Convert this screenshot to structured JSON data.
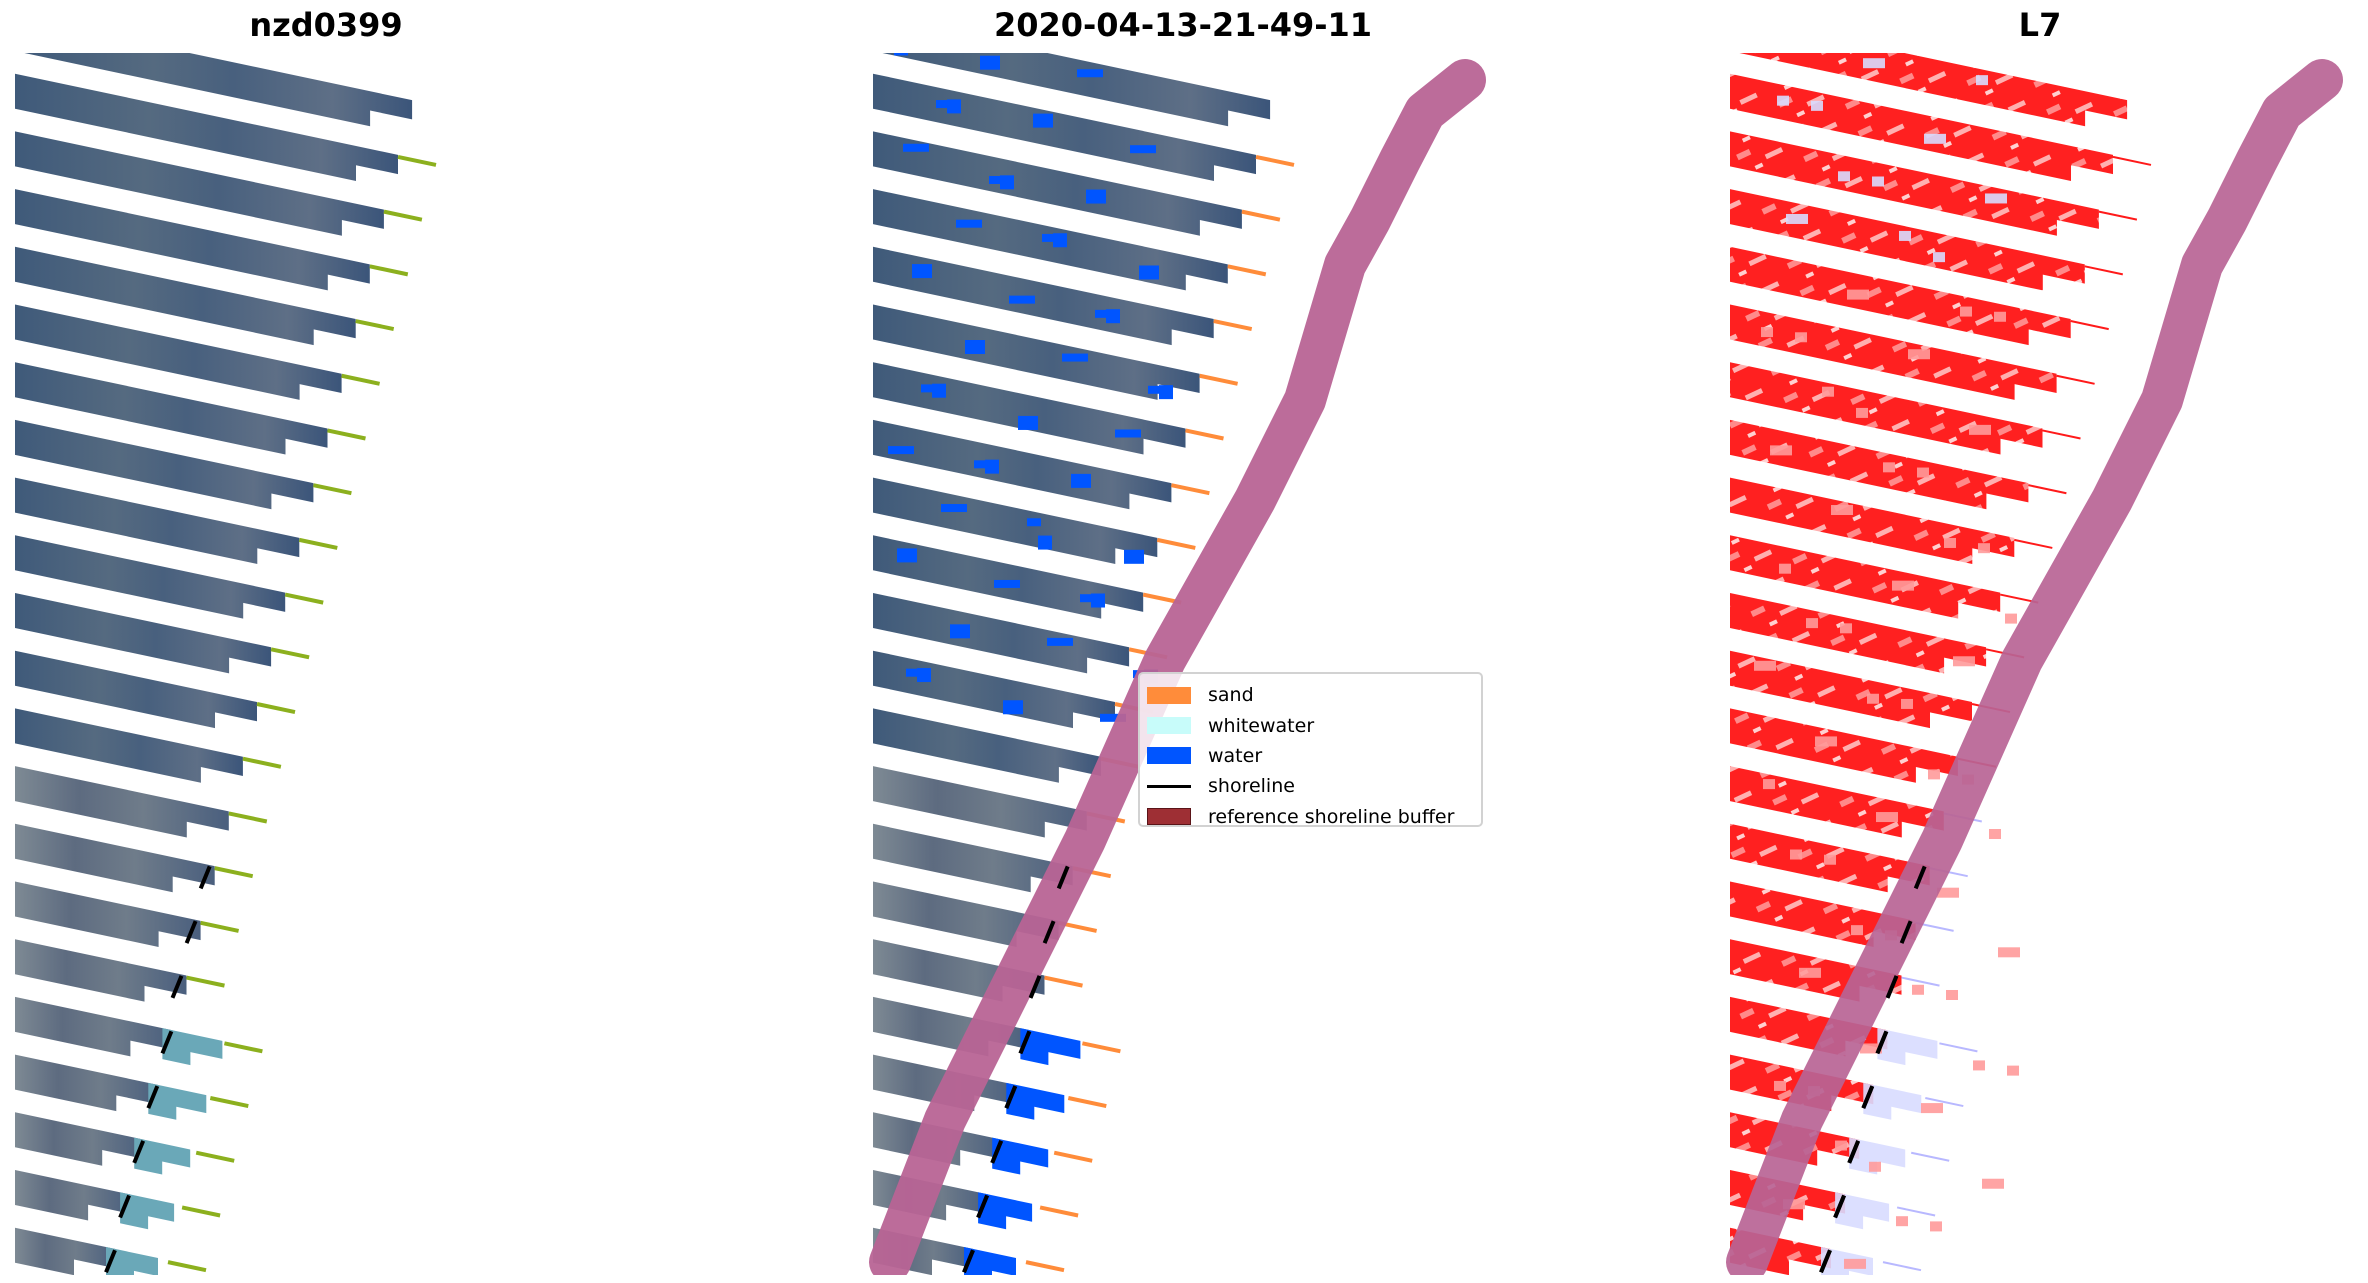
{
  "figure": {
    "panels": [
      {
        "title": "nzd0399",
        "kind": "rgb",
        "show_band": false
      },
      {
        "title": "2020-04-13-21-49-11",
        "kind": "classified",
        "show_band": true
      },
      {
        "title": "L7",
        "kind": "index",
        "show_band": true
      }
    ],
    "strip_count": 22
  },
  "legend": {
    "items": [
      {
        "label": "sand",
        "type": "patch",
        "color": "#ff8c3a"
      },
      {
        "label": "whitewater",
        "type": "patch",
        "color": "#c8fcfa"
      },
      {
        "label": "water",
        "type": "patch",
        "color": "#0055ff"
      },
      {
        "label": "shoreline",
        "type": "line",
        "color": "#000000"
      },
      {
        "label": "reference shoreline buffer",
        "type": "patch",
        "color": "#9e2f34"
      }
    ]
  },
  "colors": {
    "rgb_land": "#3e5878",
    "rgb_land_light": "#6d7f8f",
    "rgb_water": "#6aa8b8",
    "rgb_tail": "#8cb01e",
    "class_water": "#0055ff",
    "class_sand": "#ff8c3a",
    "index_red": "#ff1a1a",
    "index_light": "#d8dcff",
    "buffer_band": "#b86495",
    "shoreline": "#000000"
  }
}
